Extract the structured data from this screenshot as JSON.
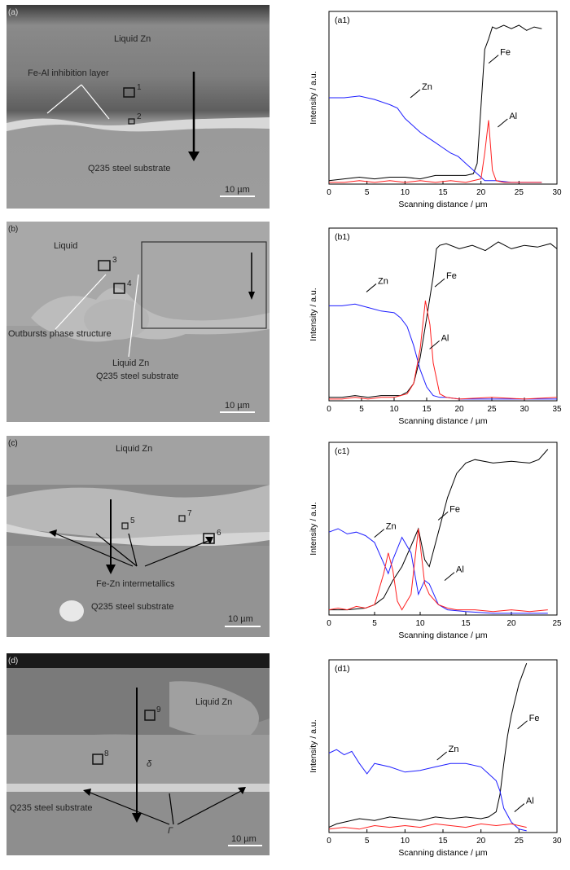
{
  "sem_panels": [
    {
      "id": "a",
      "panel_label": "(a)",
      "scale_bar": "10 µm",
      "labels": {
        "top": "Liquid Zn",
        "layer": "Fe-Al inhibition layer",
        "bottom": "Q235 steel substrate",
        "box1": "1",
        "box2": "2"
      }
    },
    {
      "id": "b",
      "panel_label": "(b)",
      "scale_bar": "10 µm",
      "labels": {
        "top": "Liquid",
        "outbursts": "Outbursts phase structure",
        "liquid_zn": "Liquid Zn",
        "bottom": "Q235 steel substrate",
        "box3": "3",
        "box4": "4"
      }
    },
    {
      "id": "c",
      "panel_label": "(c)",
      "scale_bar": "10 µm",
      "labels": {
        "top": "Liquid Zn",
        "intermetallics": "Fe-Zn intermetallics",
        "bottom": "Q235 steel substrate",
        "box5": "5",
        "box6": "6",
        "box7": "7"
      }
    },
    {
      "id": "d",
      "panel_label": "(d)",
      "scale_bar": "10 µm",
      "labels": {
        "top": "Liquid Zn",
        "delta": "δ",
        "bottom": "Q235 steel substrate",
        "gamma": "Γ",
        "box8": "8",
        "box9": "9"
      }
    }
  ],
  "colors": {
    "Fe": "#000000",
    "Zn": "#1f1fff",
    "Al": "#ff2020"
  },
  "chart_data": [
    {
      "type": "line",
      "panel_label": "(a1)",
      "xlabel": "Scanning distance / µm",
      "ylabel": "Intensity / a.u.",
      "xlim": [
        0,
        30
      ],
      "ylim": [
        0,
        100
      ],
      "xticks": [
        0,
        5,
        10,
        15,
        20,
        25,
        30
      ],
      "series": [
        {
          "name": "Fe",
          "label_at": [
            20.8,
            70
          ],
          "x": [
            0,
            2,
            4,
            6,
            8,
            10,
            12,
            14,
            16,
            18,
            19,
            19.5,
            20,
            20.5,
            21,
            21.5,
            22,
            23,
            24,
            25,
            26,
            27,
            28
          ],
          "y": [
            2,
            3,
            4,
            3,
            4,
            4,
            3,
            5,
            5,
            5,
            6,
            12,
            45,
            78,
            84,
            91,
            90,
            92,
            90,
            92,
            89,
            91,
            90
          ]
        },
        {
          "name": "Zn",
          "label_at": [
            10.5,
            50
          ],
          "x": [
            0,
            2,
            4,
            6,
            8,
            9,
            10,
            11,
            12,
            13,
            14,
            15,
            16,
            17,
            18,
            19,
            20,
            20.5,
            21,
            22,
            24,
            26,
            28
          ],
          "y": [
            50,
            50,
            51,
            49,
            46,
            44,
            38,
            34,
            30,
            27,
            24,
            21,
            18,
            16,
            12,
            8,
            4,
            2,
            2,
            2,
            1,
            1,
            1
          ]
        },
        {
          "name": "Al",
          "label_at": [
            22,
            33
          ],
          "x": [
            0,
            2,
            4,
            6,
            8,
            10,
            12,
            14,
            16,
            18,
            19,
            20,
            20.5,
            21,
            21.5,
            22,
            23,
            24,
            26,
            28
          ],
          "y": [
            1,
            1,
            2,
            1,
            2,
            1,
            2,
            1,
            2,
            1,
            2,
            3,
            18,
            37,
            8,
            2,
            1,
            1,
            1,
            1
          ]
        }
      ]
    },
    {
      "type": "line",
      "panel_label": "(b1)",
      "xlabel": "Scanning distance / µm",
      "ylabel": "Intensity / a.u.",
      "xlim": [
        0,
        35
      ],
      "ylim": [
        0,
        100
      ],
      "xticks": [
        0,
        5,
        10,
        15,
        20,
        25,
        30,
        35
      ],
      "series": [
        {
          "name": "Fe",
          "label_at": [
            16,
            66
          ],
          "x": [
            0,
            2,
            4,
            6,
            8,
            10,
            11,
            12,
            13,
            14,
            15,
            16,
            16.5,
            17,
            18,
            20,
            22,
            24,
            26,
            28,
            30,
            32,
            34,
            35
          ],
          "y": [
            2,
            2,
            3,
            2,
            3,
            3,
            3,
            5,
            10,
            25,
            48,
            72,
            88,
            90,
            91,
            88,
            90,
            87,
            92,
            88,
            90,
            89,
            91,
            88
          ]
        },
        {
          "name": "Zn",
          "label_at": [
            5.5,
            63
          ],
          "x": [
            0,
            2,
            4,
            6,
            8,
            10,
            11,
            12,
            13,
            14,
            15,
            16,
            17,
            18,
            20,
            22,
            25,
            30,
            35
          ],
          "y": [
            55,
            55,
            56,
            54,
            52,
            51,
            48,
            43,
            32,
            18,
            8,
            3,
            2,
            2,
            1,
            1,
            1,
            1,
            1
          ]
        },
        {
          "name": "Al",
          "label_at": [
            15.2,
            30
          ],
          "x": [
            0,
            2,
            4,
            6,
            8,
            10,
            12,
            13,
            14,
            14.8,
            15.5,
            16,
            17,
            18,
            20,
            25,
            30,
            35
          ],
          "y": [
            1,
            1,
            2,
            1,
            2,
            2,
            4,
            10,
            30,
            58,
            44,
            22,
            4,
            2,
            1,
            2,
            1,
            2
          ]
        }
      ]
    },
    {
      "type": "line",
      "panel_label": "(c1)",
      "xlabel": "Scanning distance / µm",
      "ylabel": "Intensity / a.u.",
      "xlim": [
        0,
        25
      ],
      "ylim": [
        0,
        100
      ],
      "xticks": [
        0,
        5,
        10,
        15,
        20,
        25
      ],
      "series": [
        {
          "name": "Fe",
          "label_at": [
            11.8,
            55
          ],
          "x": [
            0,
            2,
            4,
            5,
            6,
            7,
            8,
            9,
            9.8,
            10.5,
            11,
            12,
            13,
            14,
            15,
            16,
            18,
            20,
            22,
            23,
            24
          ],
          "y": [
            3,
            3,
            4,
            6,
            10,
            20,
            28,
            40,
            50,
            32,
            28,
            48,
            68,
            82,
            88,
            90,
            88,
            89,
            88,
            90,
            96
          ]
        },
        {
          "name": "Zn",
          "label_at": [
            4.8,
            45
          ],
          "x": [
            0,
            1,
            2,
            3,
            4,
            5,
            6,
            6.5,
            7,
            8,
            9,
            9.8,
            10.5,
            11,
            12,
            13,
            15,
            18,
            20,
            24
          ],
          "y": [
            48,
            50,
            47,
            48,
            46,
            42,
            30,
            24,
            32,
            45,
            36,
            12,
            20,
            18,
            6,
            3,
            2,
            1,
            1,
            1
          ]
        },
        {
          "name": "Al",
          "label_at": [
            12.5,
            20
          ],
          "x": [
            0,
            1,
            2,
            3,
            4,
            5,
            6,
            6.5,
            7,
            7.5,
            8,
            9,
            9.8,
            10.5,
            11,
            12,
            13,
            14,
            16,
            18,
            20,
            22,
            24
          ],
          "y": [
            3,
            4,
            3,
            5,
            4,
            6,
            24,
            36,
            26,
            8,
            3,
            12,
            50,
            18,
            12,
            6,
            4,
            3,
            3,
            2,
            3,
            2,
            3
          ]
        }
      ]
    },
    {
      "type": "line",
      "panel_label": "(d1)",
      "xlabel": "Scanning distance / µm",
      "ylabel": "Intensity / a.u.",
      "xlim": [
        0,
        30
      ],
      "ylim": [
        0,
        100
      ],
      "xticks": [
        0,
        5,
        10,
        15,
        20,
        25,
        30
      ],
      "series": [
        {
          "name": "Fe",
          "label_at": [
            24.6,
            60
          ],
          "x": [
            0,
            1,
            2,
            4,
            6,
            8,
            10,
            12,
            14,
            16,
            18,
            20,
            21,
            22,
            22.5,
            23,
            23.5,
            24,
            25,
            26
          ],
          "y": [
            3,
            5,
            6,
            8,
            7,
            9,
            8,
            7,
            9,
            8,
            9,
            8,
            9,
            12,
            22,
            40,
            56,
            68,
            86,
            98
          ]
        },
        {
          "name": "Zn",
          "label_at": [
            14,
            42
          ],
          "x": [
            0,
            1,
            2,
            3,
            4,
            5,
            6,
            8,
            10,
            12,
            14,
            16,
            18,
            20,
            21,
            22,
            22.5,
            23,
            24,
            25,
            26
          ],
          "y": [
            46,
            48,
            45,
            47,
            40,
            34,
            40,
            38,
            35,
            36,
            38,
            40,
            40,
            38,
            34,
            30,
            24,
            14,
            6,
            2,
            1
          ]
        },
        {
          "name": "Al",
          "label_at": [
            24.2,
            12
          ],
          "x": [
            0,
            2,
            4,
            6,
            8,
            10,
            12,
            14,
            16,
            18,
            20,
            22,
            24,
            25,
            26
          ],
          "y": [
            2,
            3,
            2,
            4,
            3,
            4,
            3,
            5,
            4,
            3,
            5,
            4,
            5,
            4,
            3
          ]
        }
      ]
    }
  ]
}
